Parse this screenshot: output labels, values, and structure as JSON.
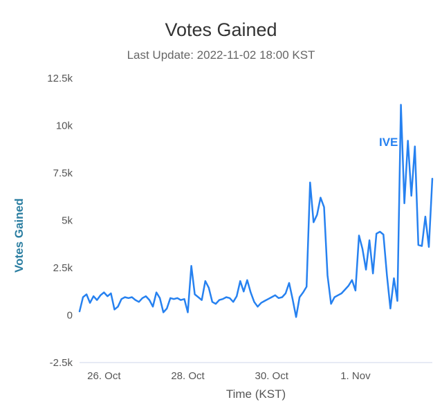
{
  "header": {
    "title": "Votes Gained",
    "subtitle": "Last Update: 2022-11-02 18:00 KST"
  },
  "axes": {
    "y_title": "Votes Gained",
    "x_title": "Time (KST)"
  },
  "menu": {
    "icon": "hamburger-icon"
  },
  "colors": {
    "line": "#2681f0",
    "series_label": "#2681f0",
    "y_axis_title": "#2b7ea1",
    "title": "#333333",
    "subtitle": "#666666",
    "tick_label": "#555555",
    "axis_line": "#ccd6eb"
  },
  "chart_data": {
    "type": "line",
    "title": "Votes Gained",
    "subtitle": "Last Update: 2022-11-02 18:00 KST",
    "xlabel": "Time (KST)",
    "ylabel": "Votes Gained",
    "ylim": [
      -2500,
      12500
    ],
    "grid": false,
    "legend_position": "inline series label near line end",
    "yticks": [
      {
        "value": -2500,
        "label": "-2.5k"
      },
      {
        "value": 0,
        "label": "0"
      },
      {
        "value": 2500,
        "label": "2.5k"
      },
      {
        "value": 5000,
        "label": "5k"
      },
      {
        "value": 7500,
        "label": "7.5k"
      },
      {
        "value": 10000,
        "label": "10k"
      },
      {
        "value": 12500,
        "label": "12.5k"
      }
    ],
    "x_step_hours": 2,
    "total_hours": 202,
    "xticks": [
      {
        "label": "26. Oct",
        "hour": 14
      },
      {
        "label": "28. Oct",
        "hour": 62
      },
      {
        "label": "30. Oct",
        "hour": 110
      },
      {
        "label": "1. Nov",
        "hour": 158
      }
    ],
    "series": [
      {
        "name": "IVE",
        "color": "#2681f0",
        "values": [
          200,
          950,
          1100,
          650,
          1000,
          800,
          1050,
          1200,
          1000,
          1150,
          300,
          450,
          850,
          950,
          900,
          950,
          800,
          700,
          900,
          1000,
          800,
          450,
          1200,
          900,
          150,
          350,
          900,
          850,
          900,
          800,
          850,
          150,
          2600,
          1100,
          950,
          800,
          1800,
          1450,
          700,
          600,
          800,
          850,
          950,
          900,
          700,
          1000,
          1800,
          1250,
          1850,
          1200,
          700,
          450,
          650,
          750,
          850,
          950,
          1050,
          900,
          950,
          1150,
          1700,
          850,
          -100,
          950,
          1200,
          1500,
          7000,
          4900,
          5300,
          6200,
          5700,
          2100,
          600,
          950,
          1050,
          1150,
          1350,
          1550,
          1850,
          1300,
          4200,
          3500,
          2400,
          3950,
          2200,
          4300,
          4400,
          4250,
          2100,
          350,
          1950,
          750,
          11100,
          5900,
          9200,
          6300,
          8900,
          3700,
          3650,
          5200,
          3600,
          7200
        ]
      }
    ]
  }
}
